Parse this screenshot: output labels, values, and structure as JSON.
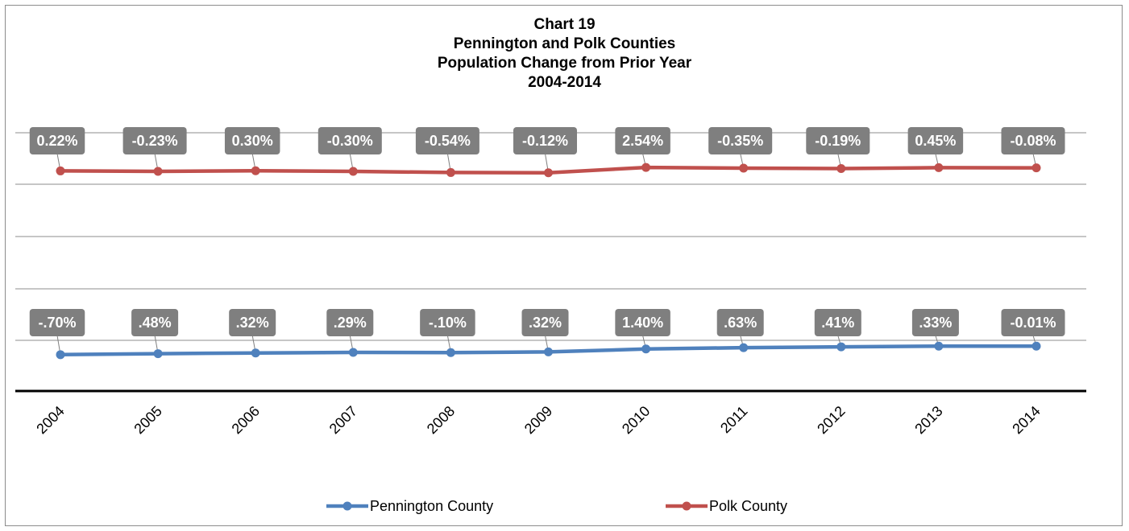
{
  "chart_data": {
    "type": "line",
    "title_lines": [
      "Chart 19",
      "Pennington and Polk Counties",
      "Population Change from Prior Year",
      "2004-2014"
    ],
    "categories": [
      "2004",
      "2005",
      "2006",
      "2007",
      "2008",
      "2009",
      "2010",
      "2011",
      "2012",
      "2013",
      "2014"
    ],
    "grid": true,
    "legend": "bottom",
    "series": [
      {
        "name": "Pennington County",
        "color": "#4f81bd",
        "values": [
          -0.7,
          0.48,
          0.32,
          0.29,
          -0.1,
          0.32,
          1.4,
          0.63,
          0.41,
          0.33,
          -0.01
        ],
        "labels": [
          "-.70%",
          ".48%",
          ".32%",
          ".29%",
          "-.10%",
          ".32%",
          "1.40%",
          ".63%",
          ".41%",
          ".33%",
          "-0.01%"
        ]
      },
      {
        "name": "Polk County",
        "color": "#c0504d",
        "values": [
          0.22,
          -0.23,
          0.3,
          -0.3,
          -0.54,
          -0.12,
          2.54,
          -0.35,
          -0.19,
          0.45,
          -0.08
        ],
        "labels": [
          "0.22%",
          "-0.23%",
          "0.30%",
          "-0.30%",
          "-0.54%",
          "-0.12%",
          "2.54%",
          "-0.35%",
          "-0.19%",
          "0.45%",
          "-0.08%"
        ]
      }
    ]
  }
}
